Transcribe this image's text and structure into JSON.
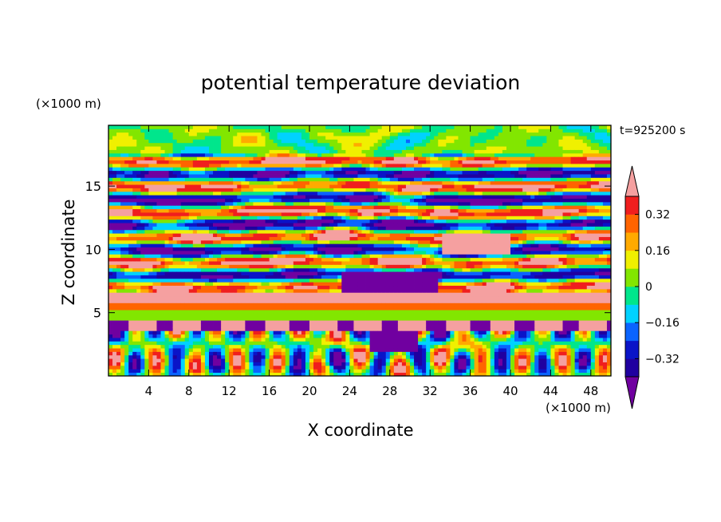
{
  "chart_data": {
    "type": "heatmap",
    "title": "potential temperature deviation",
    "xlabel": "X coordinate",
    "ylabel": "Z coordinate",
    "x_unit": "(×1000 m)",
    "y_unit": "(×1000 m)",
    "time_label": "t=925200 s",
    "x_range": [
      0,
      50
    ],
    "y_range": [
      0,
      19.8
    ],
    "x_ticks": [
      4,
      8,
      12,
      16,
      20,
      24,
      28,
      32,
      36,
      40,
      44,
      48
    ],
    "y_ticks": [
      5,
      10,
      15
    ],
    "colorbar": {
      "levels": [
        -0.4,
        -0.32,
        -0.24,
        -0.16,
        -0.08,
        0,
        0.08,
        0.16,
        0.24,
        0.32,
        0.4
      ],
      "tick_labels": [
        "0.32",
        "0.16",
        "0",
        "−0.16",
        "−0.32"
      ],
      "tick_values": [
        0.32,
        0.16,
        0,
        -0.16,
        -0.32
      ],
      "extend": "both",
      "colors": [
        "#7000a0",
        "#2000a0",
        "#0a14c8",
        "#0a64ff",
        "#00d2ff",
        "#00e68c",
        "#82e600",
        "#f0f000",
        "#ffaa00",
        "#ff6400",
        "#f01e1e",
        "#f5a0a0"
      ]
    }
  }
}
